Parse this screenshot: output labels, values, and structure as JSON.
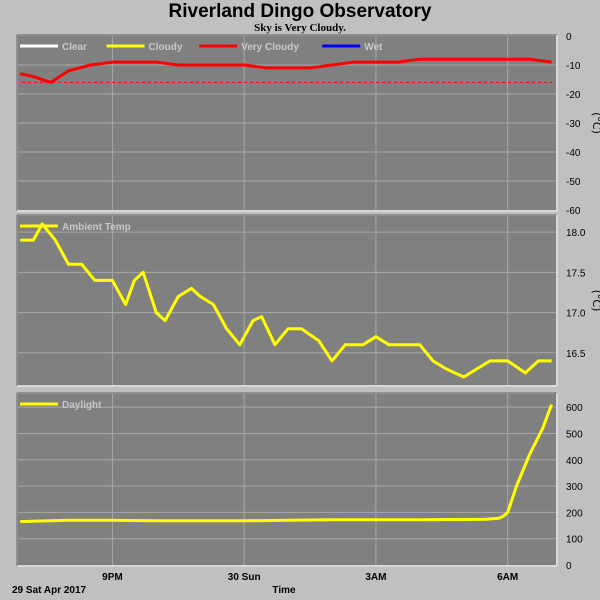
{
  "header": {
    "title": "Riverland Dingo Observatory",
    "subtitle": "Sky is Very Cloudy."
  },
  "footer": {
    "date": "29 Sat Apr 2017",
    "xlabel": "Time"
  },
  "chart_data": [
    {
      "type": "line",
      "panel": "sky",
      "legend": [
        {
          "name": "Clear",
          "color": "#ffffff"
        },
        {
          "name": "Cloudy",
          "color": "#ffff00"
        },
        {
          "name": "Very Cloudy",
          "color": "#ff0000"
        },
        {
          "name": "Wet",
          "color": "#0000ff"
        }
      ],
      "ylabel": "(°C)",
      "ylim": [
        -60,
        0
      ],
      "yticks": [
        0,
        -10,
        -20,
        -30,
        -40,
        -50,
        -60
      ],
      "x_hours": [
        18.9,
        19.2,
        19.6,
        20.0,
        20.5,
        21.0,
        21.5,
        22.0,
        22.5,
        23.0,
        23.5,
        24.0,
        24.5,
        25.0,
        25.5,
        26.0,
        26.5,
        27.0,
        27.5,
        28.0,
        28.5,
        29.0,
        29.5,
        30.0,
        30.5,
        31.0
      ],
      "series": [
        {
          "color": "#ff0000",
          "values": [
            -13,
            -14,
            -16,
            -12,
            -10,
            -9,
            -9,
            -9,
            -10,
            -10,
            -10,
            -10,
            -11,
            -11,
            -11,
            -10,
            -9,
            -9,
            -9,
            -8,
            -8,
            -8,
            -8,
            -8,
            -8,
            -9
          ]
        }
      ],
      "reference_line": {
        "value": -16,
        "color": "#ff0000"
      },
      "grid": true
    },
    {
      "type": "line",
      "panel": "ambient",
      "legend": [
        {
          "name": "Ambient Temp",
          "color": "#ffff00"
        }
      ],
      "ylabel": "(°C)",
      "ylim": [
        16.1,
        18.2
      ],
      "yticks": [
        18.0,
        17.5,
        17.0,
        16.5
      ],
      "x_hours": [
        18.9,
        19.2,
        19.4,
        19.7,
        20.0,
        20.3,
        20.6,
        21.0,
        21.3,
        21.5,
        21.7,
        22.0,
        22.2,
        22.5,
        22.8,
        23.0,
        23.3,
        23.6,
        23.9,
        24.2,
        24.4,
        24.7,
        25.0,
        25.3,
        25.7,
        26.0,
        26.3,
        26.7,
        27.0,
        27.3,
        27.7,
        28.0,
        28.3,
        28.6,
        29.0,
        29.3,
        29.6,
        30.0,
        30.4,
        30.7,
        31.0
      ],
      "series": [
        {
          "color": "#ffff00",
          "values": [
            17.9,
            17.9,
            18.1,
            17.9,
            17.6,
            17.6,
            17.4,
            17.4,
            17.1,
            17.4,
            17.5,
            17.0,
            16.9,
            17.2,
            17.3,
            17.2,
            17.1,
            16.8,
            16.6,
            16.9,
            16.95,
            16.6,
            16.8,
            16.8,
            16.65,
            16.4,
            16.6,
            16.6,
            16.7,
            16.6,
            16.6,
            16.6,
            16.4,
            16.3,
            16.2,
            16.3,
            16.4,
            16.4,
            16.25,
            16.4,
            16.4
          ]
        }
      ],
      "grid": true
    },
    {
      "type": "line",
      "panel": "daylight",
      "legend": [
        {
          "name": "Daylight",
          "color": "#ffff00"
        }
      ],
      "ylim": [
        0,
        650
      ],
      "yticks": [
        600,
        500,
        400,
        300,
        200,
        100,
        0
      ],
      "x_hours": [
        18.9,
        20.0,
        21.0,
        22.0,
        23.0,
        24.0,
        25.0,
        26.0,
        27.0,
        28.0,
        29.0,
        29.5,
        29.8,
        29.9,
        30.0,
        30.2,
        30.5,
        30.8,
        31.0
      ],
      "series": [
        {
          "color": "#ffff00",
          "values": [
            165,
            170,
            170,
            168,
            168,
            168,
            170,
            172,
            172,
            172,
            173,
            174,
            178,
            185,
            200,
            300,
            420,
            520,
            610
          ]
        }
      ],
      "grid": true
    }
  ],
  "x_axis": {
    "tick_hours": [
      21,
      24,
      27,
      30
    ],
    "tick_labels": [
      "9PM",
      "30 Sun",
      "3AM",
      "6AM"
    ],
    "range_hours": [
      18.85,
      31.1
    ]
  }
}
